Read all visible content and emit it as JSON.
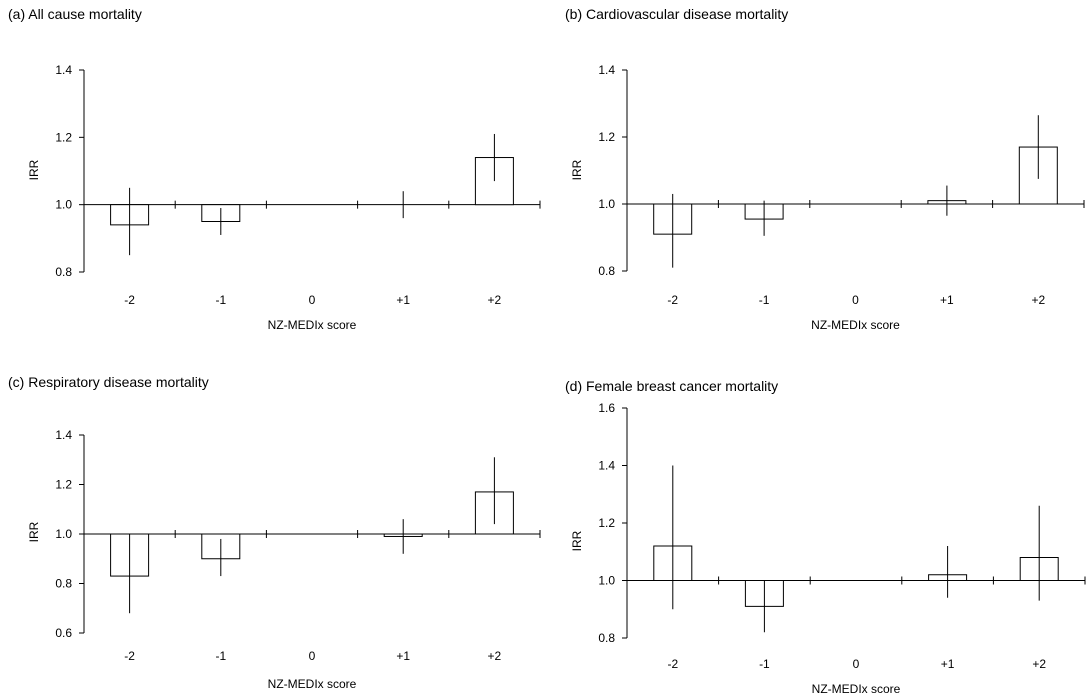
{
  "chart_data": [
    {
      "type": "bar",
      "title": "(a) All cause mortality",
      "xlabel": "NZ-MEDIx score",
      "ylabel": "IRR",
      "baseline": 1.0,
      "ylim": [
        0.8,
        1.4
      ],
      "yticks": [
        "0.8",
        "1.0",
        "1.2",
        "1.4"
      ],
      "categories": [
        "-2",
        "-1",
        "0",
        "+1",
        "+2"
      ],
      "values": [
        0.94,
        0.95,
        1.0,
        1.0,
        1.14
      ],
      "ci_low": [
        0.85,
        0.91,
        null,
        0.96,
        1.07
      ],
      "ci_high": [
        1.05,
        0.99,
        null,
        1.04,
        1.21
      ]
    },
    {
      "type": "bar",
      "title": "(b) Cardiovascular disease mortality",
      "xlabel": "NZ-MEDIx score",
      "ylabel": "IRR",
      "baseline": 1.0,
      "ylim": [
        0.8,
        1.4
      ],
      "yticks": [
        "0.8",
        "1.0",
        "1.2",
        "1.4"
      ],
      "categories": [
        "-2",
        "-1",
        "0",
        "+1",
        "+2"
      ],
      "values": [
        0.91,
        0.955,
        1.0,
        1.01,
        1.17
      ],
      "ci_low": [
        0.81,
        0.905,
        null,
        0.965,
        1.075
      ],
      "ci_high": [
        1.03,
        1.01,
        null,
        1.055,
        1.265
      ]
    },
    {
      "type": "bar",
      "title": "(c) Respiratory disease mortality",
      "xlabel": "NZ-MEDIx score",
      "ylabel": "IRR",
      "baseline": 1.0,
      "ylim": [
        0.6,
        1.4
      ],
      "yticks": [
        "0.6",
        "0.8",
        "1.0",
        "1.2",
        "1.4"
      ],
      "categories": [
        "-2",
        "-1",
        "0",
        "+1",
        "+2"
      ],
      "values": [
        0.83,
        0.9,
        1.0,
        0.99,
        1.17
      ],
      "ci_low": [
        0.68,
        0.83,
        null,
        0.92,
        1.04
      ],
      "ci_high": [
        1.0,
        0.98,
        null,
        1.06,
        1.31
      ]
    },
    {
      "type": "bar",
      "title": "(d) Female breast cancer mortality",
      "xlabel": "NZ-MEDIx score",
      "ylabel": "IRR",
      "baseline": 1.0,
      "ylim": [
        0.8,
        1.6
      ],
      "yticks": [
        "0.8",
        "1.0",
        "1.2",
        "1.4",
        "1.6"
      ],
      "categories": [
        "-2",
        "-1",
        "0",
        "+1",
        "+2"
      ],
      "values": [
        1.12,
        0.91,
        1.0,
        1.02,
        1.08
      ],
      "ci_low": [
        0.9,
        0.82,
        null,
        0.94,
        0.93
      ],
      "ci_high": [
        1.4,
        1.0,
        null,
        1.12,
        1.26
      ]
    }
  ]
}
